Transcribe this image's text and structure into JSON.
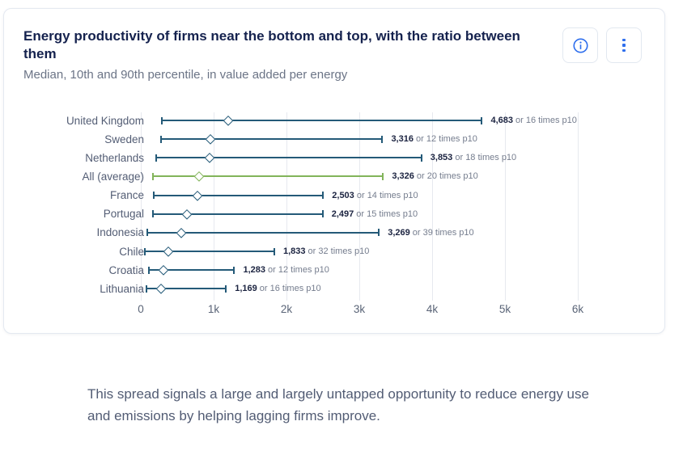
{
  "card": {
    "title": "Energy productivity of firms near the bottom and top, with the ratio between them",
    "subtitle": "Median, 10th and 90th percentile, in value added per energy",
    "actions": {
      "info_icon": "info-icon",
      "menu_icon": "kebab-menu-icon"
    },
    "accent_blue": "#2f6fed"
  },
  "chart_data": {
    "type": "dumbbell-range",
    "title": "Energy productivity of firms near the bottom and top, with the ratio between them",
    "subtitle": "Median, 10th and 90th percentile, in value added per energy",
    "x_axis": {
      "min": 0,
      "max": 6000,
      "grid": true,
      "ticks": [
        {
          "value": 0,
          "label": "0"
        },
        {
          "value": 1000,
          "label": "1k"
        },
        {
          "value": 2000,
          "label": "2k"
        },
        {
          "value": 3000,
          "label": "3k"
        },
        {
          "value": 4000,
          "label": "4k"
        },
        {
          "value": 5000,
          "label": "5k"
        },
        {
          "value": 6000,
          "label": "6k"
        }
      ]
    },
    "colors": {
      "line": "#245a78",
      "highlight": "#82b45a"
    },
    "rows": [
      {
        "country": "United Kingdom",
        "p10": 293,
        "median": 1200,
        "p90": 4683,
        "value_label": "4,683",
        "suffix": "or 16 times p10",
        "ratio": 16,
        "highlight": false
      },
      {
        "country": "Sweden",
        "p10": 276,
        "median": 950,
        "p90": 3316,
        "value_label": "3,316",
        "suffix": "or 12 times p10",
        "ratio": 12,
        "highlight": false
      },
      {
        "country": "Netherlands",
        "p10": 214,
        "median": 940,
        "p90": 3853,
        "value_label": "3,853",
        "suffix": "or 18 times p10",
        "ratio": 18,
        "highlight": false
      },
      {
        "country": "All (average)",
        "p10": 166,
        "median": 800,
        "p90": 3326,
        "value_label": "3,326",
        "suffix": "or 20 times p10",
        "ratio": 20,
        "highlight": true
      },
      {
        "country": "France",
        "p10": 179,
        "median": 775,
        "p90": 2503,
        "value_label": "2,503",
        "suffix": "or 14 times p10",
        "ratio": 14,
        "highlight": false
      },
      {
        "country": "Portugal",
        "p10": 166,
        "median": 630,
        "p90": 2497,
        "value_label": "2,497",
        "suffix": "or 15 times p10",
        "ratio": 15,
        "highlight": false
      },
      {
        "country": "Indonesia",
        "p10": 84,
        "median": 550,
        "p90": 3269,
        "value_label": "3,269",
        "suffix": "or 39 times p10",
        "ratio": 39,
        "highlight": false
      },
      {
        "country": "Chile",
        "p10": 57,
        "median": 375,
        "p90": 1833,
        "value_label": "1,833",
        "suffix": "or 32 times p10",
        "ratio": 32,
        "highlight": false
      },
      {
        "country": "Croatia",
        "p10": 107,
        "median": 310,
        "p90": 1283,
        "value_label": "1,283",
        "suffix": "or 12 times p10",
        "ratio": 12,
        "highlight": false
      },
      {
        "country": "Lithuania",
        "p10": 73,
        "median": 275,
        "p90": 1169,
        "value_label": "1,169",
        "suffix": "or 16 times p10",
        "ratio": 16,
        "highlight": false
      }
    ]
  },
  "footer": {
    "text": "This spread signals a large and largely untapped opportunity to reduce energy use and emissions by helping lagging firms improve."
  }
}
